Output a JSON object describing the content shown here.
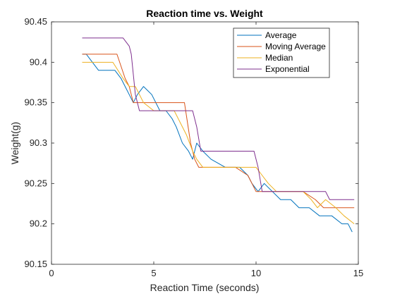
{
  "chart_data": {
    "type": "line",
    "title": "Reaction time vs. Weight",
    "xlabel": "Reaction Time (seconds)",
    "ylabel": "Weight(g)",
    "xlim": [
      0,
      15
    ],
    "ylim": [
      90.15,
      90.45
    ],
    "xticks": [
      "0",
      "5",
      "10",
      "15"
    ],
    "yticks": [
      "90.15",
      "90.2",
      "90.25",
      "90.3",
      "90.35",
      "90.4",
      "90.45"
    ],
    "grid": false,
    "legend_position": "top-right",
    "series": [
      {
        "name": "Average",
        "color": "#0072BD",
        "x": [
          1.5,
          1.7,
          2.0,
          2.3,
          2.7,
          3.1,
          3.4,
          3.6,
          3.8,
          4.0,
          4.2,
          4.5,
          4.9,
          5.3,
          5.6,
          5.9,
          6.1,
          6.4,
          6.7,
          6.9,
          7.1,
          7.4,
          7.8,
          8.5,
          9.2,
          9.6,
          9.8,
          10.1,
          10.4,
          10.8,
          11.2,
          11.7,
          12.1,
          12.6,
          13.1,
          13.7,
          14.2,
          14.5,
          14.7
        ],
        "y": [
          90.41,
          90.41,
          90.4,
          90.39,
          90.39,
          90.39,
          90.38,
          90.37,
          90.36,
          90.35,
          90.36,
          90.37,
          90.36,
          90.34,
          90.34,
          90.33,
          90.32,
          90.3,
          90.29,
          90.28,
          90.3,
          90.29,
          90.28,
          90.27,
          90.27,
          90.26,
          90.25,
          90.24,
          90.25,
          90.24,
          90.23,
          90.23,
          90.22,
          90.22,
          90.21,
          90.21,
          90.2,
          90.2,
          90.19
        ]
      },
      {
        "name": "Moving Average",
        "color": "#D95319",
        "x": [
          1.5,
          2.0,
          3.2,
          3.6,
          3.8,
          4.0,
          4.5,
          5.0,
          6.0,
          6.5,
          6.8,
          7.0,
          7.2,
          7.5,
          8.0,
          9.0,
          9.6,
          9.8,
          10.0,
          10.3,
          10.8,
          11.5,
          12.3,
          12.9,
          13.3,
          13.8,
          14.3,
          14.8
        ],
        "y": [
          90.41,
          90.41,
          90.41,
          90.38,
          90.37,
          90.35,
          90.35,
          90.35,
          90.35,
          90.35,
          90.3,
          90.28,
          90.27,
          90.27,
          90.27,
          90.27,
          90.26,
          90.25,
          90.24,
          90.24,
          90.24,
          90.24,
          90.24,
          90.23,
          90.22,
          90.22,
          90.22,
          90.22
        ]
      },
      {
        "name": "Median",
        "color": "#EDB120",
        "x": [
          1.5,
          2.0,
          3.0,
          3.5,
          3.8,
          4.1,
          4.5,
          5.0,
          5.5,
          6.0,
          6.6,
          6.9,
          7.1,
          7.4,
          8.0,
          9.0,
          10.0,
          10.3,
          10.6,
          11.0,
          11.5,
          12.3,
          12.7,
          13.0,
          13.4,
          13.9,
          14.3,
          14.8
        ],
        "y": [
          90.4,
          90.4,
          90.4,
          90.38,
          90.37,
          90.37,
          90.35,
          90.34,
          90.34,
          90.34,
          90.31,
          90.29,
          90.28,
          90.27,
          90.27,
          90.27,
          90.27,
          90.26,
          90.25,
          90.24,
          90.24,
          90.24,
          90.23,
          90.22,
          90.23,
          90.22,
          90.21,
          90.2
        ]
      },
      {
        "name": "Exponential",
        "color": "#7E2F8E",
        "x": [
          1.5,
          2.5,
          3.5,
          3.8,
          3.9,
          4.1,
          4.3,
          5.0,
          6.0,
          6.9,
          7.1,
          7.3,
          8.0,
          9.0,
          9.9,
          10.1,
          10.3,
          11.0,
          12.0,
          13.0,
          13.4,
          13.6,
          14.0,
          14.8
        ],
        "y": [
          90.43,
          90.43,
          90.43,
          90.42,
          90.41,
          90.36,
          90.34,
          90.34,
          90.34,
          90.34,
          90.32,
          90.29,
          90.29,
          90.29,
          90.29,
          90.27,
          90.24,
          90.24,
          90.24,
          90.24,
          90.24,
          90.23,
          90.23,
          90.23
        ]
      }
    ]
  }
}
